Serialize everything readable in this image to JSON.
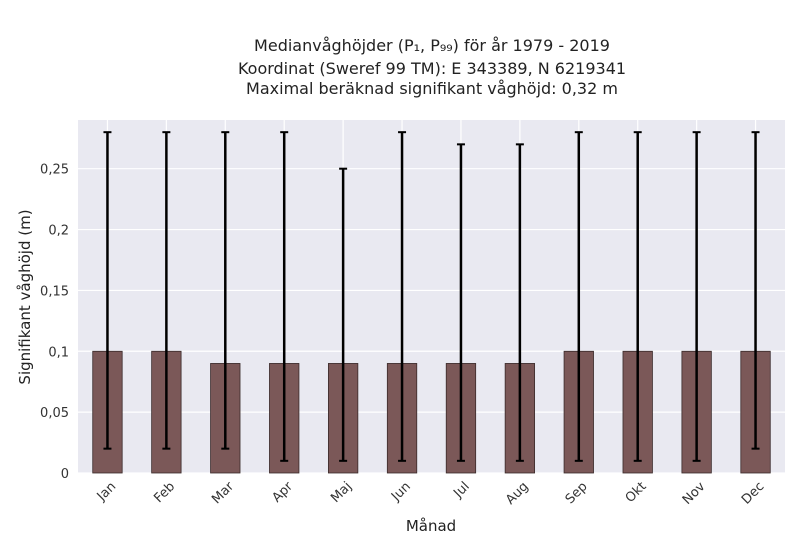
{
  "chart_data": {
    "type": "bar",
    "title_lines": [
      "Medianvåghöjder (P₁, P₉₉) för år 1979 - 2019",
      "Koordinat (Sweref 99 TM): E 343389, N 6219341",
      "Maximal beräknad signifikant våghöjd: 0,32 m"
    ],
    "xlabel": "Månad",
    "ylabel": "Signifikant våghöjd (m)",
    "ylim": [
      0,
      0.29
    ],
    "yticks": [
      {
        "value": 0,
        "label": "0"
      },
      {
        "value": 0.05,
        "label": "0,05"
      },
      {
        "value": 0.1,
        "label": "0,1"
      },
      {
        "value": 0.15,
        "label": "0,15"
      },
      {
        "value": 0.2,
        "label": "0,2"
      },
      {
        "value": 0.25,
        "label": "0,25"
      }
    ],
    "categories": [
      "Jan",
      "Feb",
      "Mar",
      "Apr",
      "Maj",
      "Jun",
      "Jul",
      "Aug",
      "Sep",
      "Okt",
      "Nov",
      "Dec"
    ],
    "values": [
      0.1,
      0.1,
      0.09,
      0.09,
      0.09,
      0.09,
      0.09,
      0.09,
      0.1,
      0.1,
      0.1,
      0.1
    ],
    "p1": [
      0.02,
      0.02,
      0.02,
      0.01,
      0.01,
      0.01,
      0.01,
      0.01,
      0.01,
      0.01,
      0.01,
      0.02
    ],
    "p99": [
      0.28,
      0.28,
      0.28,
      0.28,
      0.25,
      0.28,
      0.27,
      0.27,
      0.28,
      0.28,
      0.28,
      0.28
    ],
    "grid": true,
    "colors": {
      "bar": "#7b5858",
      "bar_edge": "#3a2a2a",
      "error": "#000000",
      "plot_bg": "#e9e9f1",
      "grid": "#ffffff"
    }
  }
}
